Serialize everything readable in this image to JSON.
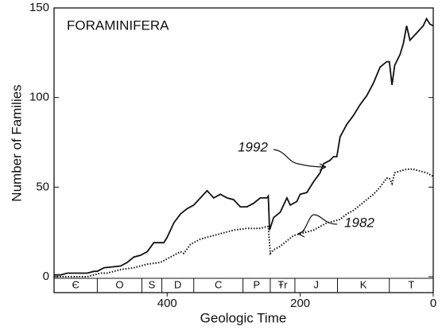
{
  "chart_data": {
    "type": "line",
    "title": "FORAMINIFERA",
    "x_label": "Geologic Time",
    "y_label": "Number of Families",
    "xlim": [
      570,
      0
    ],
    "ylim": [
      0,
      150
    ],
    "xticks": [
      400,
      200,
      0
    ],
    "yticks": [
      0,
      50,
      100,
      150
    ],
    "series": [
      {
        "name": "1992",
        "color": "#111111",
        "style": "solid",
        "x": [
          570,
          560,
          550,
          520,
          510,
          505,
          495,
          470,
          460,
          450,
          440,
          430,
          420,
          405,
          400,
          390,
          380,
          370,
          360,
          350,
          340,
          330,
          320,
          310,
          300,
          290,
          280,
          270,
          260,
          250,
          248,
          246,
          240,
          230,
          220,
          215,
          205,
          200,
          190,
          180,
          170,
          165,
          160,
          155,
          150,
          145,
          140,
          130,
          120,
          110,
          100,
          90,
          80,
          70,
          66,
          62,
          58,
          50,
          45,
          40,
          35,
          25,
          15,
          10,
          5,
          0
        ],
        "values": [
          1,
          1,
          2,
          2,
          3,
          3,
          5,
          6,
          8,
          11,
          12,
          14,
          19,
          19,
          22,
          30,
          35,
          38,
          40,
          44,
          48,
          44,
          46,
          44,
          43,
          39,
          39,
          41,
          44,
          44,
          45,
          26,
          33,
          36,
          44,
          40,
          42,
          46,
          47,
          53,
          58,
          63,
          64,
          65,
          67,
          67,
          78,
          85,
          90,
          96,
          101,
          108,
          117,
          120,
          120,
          107,
          118,
          124,
          130,
          140,
          132,
          136,
          140,
          144,
          141,
          140
        ]
      },
      {
        "name": "1982",
        "color": "#111111",
        "style": "dotted",
        "x": [
          570,
          540,
          520,
          510,
          500,
          490,
          470,
          450,
          430,
          410,
          400,
          390,
          380,
          375,
          365,
          350,
          340,
          320,
          300,
          280,
          260,
          250,
          248,
          245,
          240,
          230,
          220,
          210,
          200,
          190,
          180,
          170,
          160,
          150,
          140,
          130,
          120,
          110,
          100,
          90,
          80,
          70,
          66,
          62,
          58,
          50,
          40,
          30,
          20,
          10,
          0
        ],
        "values": [
          0,
          0,
          0,
          1,
          2,
          2,
          4,
          5,
          7,
          8,
          10,
          12,
          14,
          13,
          18,
          21,
          22,
          24,
          26,
          27,
          27,
          28,
          28,
          13,
          15,
          17,
          20,
          23,
          24,
          25,
          26,
          28,
          30,
          31,
          32,
          35,
          37,
          40,
          43,
          46,
          50,
          55,
          55,
          52,
          58,
          59,
          60,
          60,
          59,
          58,
          56
        ]
      }
    ],
    "periods": [
      {
        "label": "Є",
        "start": 570,
        "end": 505
      },
      {
        "label": "O",
        "start": 505,
        "end": 438
      },
      {
        "label": "S",
        "start": 438,
        "end": 408
      },
      {
        "label": "D",
        "start": 408,
        "end": 360
      },
      {
        "label": "C",
        "start": 360,
        "end": 286
      },
      {
        "label": "P",
        "start": 286,
        "end": 245
      },
      {
        "label": "Ŧr",
        "start": 245,
        "end": 208
      },
      {
        "label": "J",
        "start": 208,
        "end": 144
      },
      {
        "label": "K",
        "start": 144,
        "end": 66
      },
      {
        "label": "T",
        "start": 66,
        "end": 0
      }
    ]
  }
}
